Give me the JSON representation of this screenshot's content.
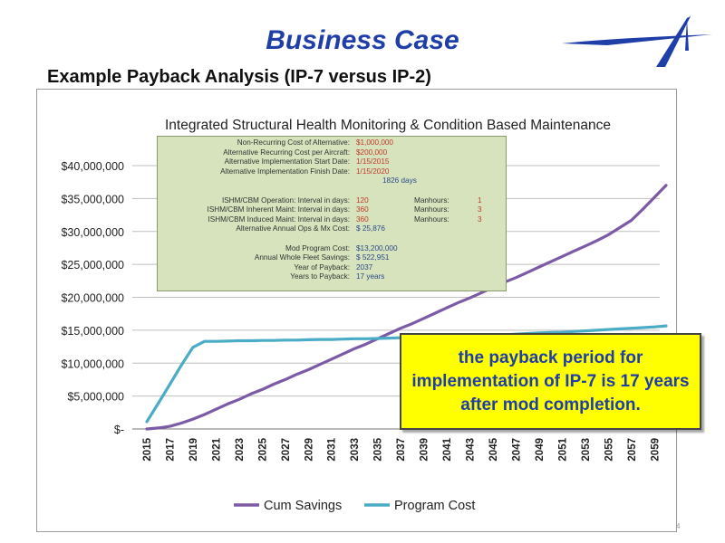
{
  "slide": {
    "title": "Business Case",
    "subtitle": "Example Payback Analysis (IP-7 versus IP-2)",
    "page_number": "4"
  },
  "colors": {
    "title": "#1f3ea8",
    "cum_savings": "#7b5aa6",
    "program_cost": "#4aacc6",
    "infobox_bg": "#d6e3bc",
    "callout_bg": "#ffff00"
  },
  "infobox": {
    "rows": [
      {
        "label": "Non-Recurring Cost of Alternative:",
        "value": "$1,000,000",
        "color": "red"
      },
      {
        "label": "Alternative Recurring Cost per Aircraft:",
        "value": "$200,000",
        "color": "red"
      },
      {
        "label": "Alternative Implementation Start Date:",
        "value": "1/15/2015",
        "color": "red"
      },
      {
        "label": "Alternative Implementation Finish Date:",
        "value": "1/15/2020",
        "color": "red"
      },
      {
        "label": "",
        "value": "1826 days",
        "color": "blue"
      },
      {
        "label": "",
        "value": "",
        "color": "blue"
      },
      {
        "label": "ISHM/CBM Operation:  Interval in days:",
        "value": "120",
        "color": "red",
        "extra_label": "Manhours:",
        "extra_value": "1"
      },
      {
        "label": "ISHM/CBM Inherent Maint:  Interval in days:",
        "value": "360",
        "color": "red",
        "extra_label": "Manhours:",
        "extra_value": "3"
      },
      {
        "label": "ISHM/CBM Induced Maint:  Interval in days:",
        "value": "360",
        "color": "red",
        "extra_label": "Manhours:",
        "extra_value": "3"
      },
      {
        "label": "Alternative Annual Ops & Mx Cost:",
        "value": "$     25,876",
        "color": "blue"
      },
      {
        "label": "",
        "value": "",
        "color": "blue"
      },
      {
        "label": "Mod Program Cost:",
        "value": "$13,200,000",
        "color": "blue"
      },
      {
        "label": "Annual Whole Fleet Savings:",
        "value": "$    522,951",
        "color": "blue"
      },
      {
        "label": "Year of Payback:",
        "value": "2037",
        "color": "blue"
      },
      {
        "label": "Years to Payback:",
        "value": "17    years",
        "color": "blue"
      }
    ]
  },
  "callout": {
    "text": "the payback period for implementation of IP-7 is 17 years after mod completion."
  },
  "chart_data": {
    "type": "line",
    "title": "Integrated Structural Health Monitoring & Condition Based Maintenance",
    "x": [
      2015,
      2016,
      2017,
      2018,
      2019,
      2020,
      2021,
      2022,
      2023,
      2024,
      2025,
      2026,
      2027,
      2028,
      2029,
      2030,
      2031,
      2032,
      2033,
      2034,
      2035,
      2036,
      2037,
      2038,
      2039,
      2040,
      2041,
      2042,
      2043,
      2044,
      2045,
      2046,
      2047,
      2048,
      2049,
      2050,
      2051,
      2052,
      2053,
      2054,
      2055,
      2056,
      2057,
      2058,
      2059,
      2060
    ],
    "x_tick_labels": [
      "2015",
      "2017",
      "2019",
      "2021",
      "2023",
      "2025",
      "2027",
      "2029",
      "2031",
      "2033",
      "2035",
      "2037",
      "2039",
      "2041",
      "2043",
      "2045",
      "2047",
      "2049",
      "2051",
      "2053",
      "2055",
      "2057",
      "2059"
    ],
    "y_tick_labels": [
      "$-",
      "$5,000,000",
      "$10,000,000",
      "$15,000,000",
      "$20,000,000",
      "$25,000,000",
      "$30,000,000",
      "$35,000,000",
      "$40,000,000"
    ],
    "ylim": [
      0,
      40000000
    ],
    "series": [
      {
        "name": "Cum Savings",
        "color": "#7b5aa6",
        "values": [
          0,
          150000,
          400000,
          900000,
          1500000,
          2200000,
          3000000,
          3800000,
          4500000,
          5300000,
          6000000,
          6800000,
          7500000,
          8300000,
          9000000,
          9800000,
          10600000,
          11400000,
          12200000,
          12900000,
          13700000,
          14500000,
          15300000,
          16000000,
          16800000,
          17600000,
          18400000,
          19200000,
          19900000,
          20700000,
          21500000,
          22300000,
          23000000,
          23800000,
          24600000,
          25400000,
          26200000,
          27000000,
          27800000,
          28600000,
          29500000,
          30600000,
          31700000,
          33400000,
          35200000,
          37000000
        ]
      },
      {
        "name": "Program Cost",
        "color": "#4aacc6",
        "values": [
          1100000,
          3900000,
          6800000,
          9700000,
          12400000,
          13300000,
          13300000,
          13350000,
          13400000,
          13400000,
          13450000,
          13450000,
          13500000,
          13500000,
          13550000,
          13600000,
          13600000,
          13650000,
          13700000,
          13700000,
          13750000,
          13800000,
          13850000,
          13900000,
          13950000,
          14000000,
          14050000,
          14100000,
          14150000,
          14200000,
          14250000,
          14300000,
          14400000,
          14500000,
          14600000,
          14650000,
          14700000,
          14800000,
          14900000,
          15000000,
          15100000,
          15200000,
          15300000,
          15400000,
          15500000,
          15650000
        ]
      }
    ],
    "grid": {
      "horizontal": true,
      "vertical": false
    },
    "legend": "bottom-center"
  }
}
